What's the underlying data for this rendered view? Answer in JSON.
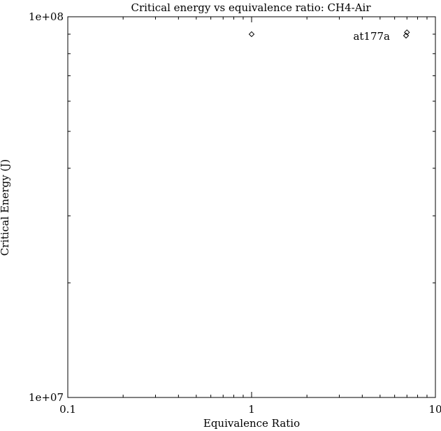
{
  "chart_data": {
    "type": "scatter",
    "title": "Critical energy vs equivalence ratio: CH4-Air",
    "xlabel": "Equivalence Ratio",
    "ylabel": "Critical Energy (J)",
    "xscale": "log",
    "yscale": "log",
    "xlim": [
      0.1,
      10
    ],
    "ylim": [
      10000000,
      100000000
    ],
    "x_ticks": [
      {
        "value": 0.1,
        "label": "0.1"
      },
      {
        "value": 1,
        "label": "1"
      },
      {
        "value": 10,
        "label": "10"
      }
    ],
    "y_ticks": [
      {
        "value": 10000000,
        "label": "1e+07"
      },
      {
        "value": 100000000,
        "label": "1e+08"
      }
    ],
    "grid": false,
    "series": [
      {
        "name": "at177a",
        "marker": "diamond",
        "points": [
          {
            "x": 1.0,
            "y": 90000000
          },
          {
            "x": 7.0,
            "y": 91000000
          }
        ]
      }
    ],
    "legend_position": "top-right"
  }
}
